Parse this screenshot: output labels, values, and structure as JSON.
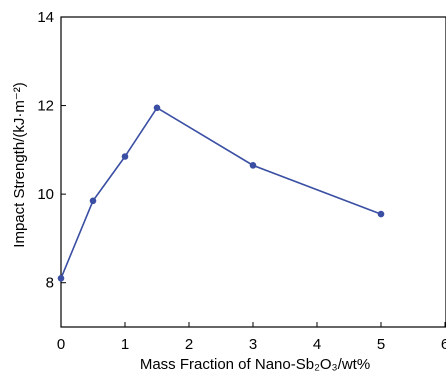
{
  "chart_data": {
    "type": "line",
    "title": "",
    "xlabel": "Mass Fraction of Nano-Sb₂O₃/wt%",
    "ylabel": "Impact Strength/(kJ·m⁻²)",
    "xlim": [
      0,
      6
    ],
    "ylim": [
      7,
      14
    ],
    "xticks": [
      "0",
      "1",
      "2",
      "3",
      "4",
      "5",
      "6"
    ],
    "yticks": [
      "8",
      "10",
      "12",
      "14"
    ],
    "grid": false,
    "series": [
      {
        "x": [
          0,
          0.5,
          1,
          1.5,
          3,
          5
        ],
        "y": [
          8.1,
          9.85,
          10.85,
          11.95,
          10.65,
          9.55
        ],
        "color": "#3a4fa3"
      }
    ]
  }
}
